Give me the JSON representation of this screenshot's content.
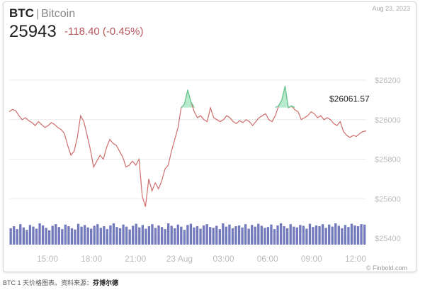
{
  "header": {
    "symbol": "BTC",
    "separator": "|",
    "name": "Bitcoin",
    "date": "Aug 23, 2023",
    "price": "25943",
    "change": "-118.40 (-0.45%)"
  },
  "footer": {
    "caption": "BTC 1 天价格图表。资料来源：",
    "source": "芬博尔德"
  },
  "colors": {
    "line": "#d06c6c",
    "up_fill": "#a6e6c2",
    "up_line": "#5ccf95",
    "volume": "#5a63b0",
    "grid": "#ebebeb",
    "axis_text": "#bbbbbb"
  },
  "chart_data": {
    "type": "line",
    "x_ticks": [
      "15:00",
      "18:00",
      "21:00",
      "23 Aug",
      "03:00",
      "06:00",
      "09:00",
      "12:00"
    ],
    "y_ticks": [
      "$26200",
      "$26000",
      "$25800",
      "$25600",
      "$25400"
    ],
    "ylim": [
      25400,
      26200
    ],
    "price_label": "$26061.57",
    "reference_price": 26061.57,
    "watermark": "© Finbold.com",
    "series": [
      {
        "values": [
          26040,
          26052,
          26045,
          26020,
          26000,
          26010,
          25995,
          25985,
          25970,
          25990,
          25975,
          25960,
          25970,
          25985,
          25975,
          25960,
          25950,
          25930,
          25870,
          25820,
          25840,
          25910,
          26020,
          25990,
          25920,
          25850,
          25760,
          25790,
          25820,
          25800,
          25860,
          25900,
          25880,
          25870,
          25840,
          25810,
          25760,
          25770,
          25790,
          25770,
          25800,
          25610,
          25560,
          25700,
          25640,
          25680,
          25650,
          25690,
          25750,
          25770,
          25840,
          25900,
          25960,
          26060,
          26080,
          26150,
          26090,
          26040,
          26010,
          26020,
          26000,
          25990,
          26060,
          26010,
          26000,
          25990,
          26000,
          26020,
          26010,
          25990,
          25980,
          25995,
          25985,
          26000,
          25990,
          25970,
          25990,
          26010,
          26020,
          26030,
          26000,
          25990,
          26020,
          26070,
          26100,
          26170,
          26060,
          26070,
          26050,
          26040,
          26000,
          26010,
          26020,
          26040,
          26030,
          26010,
          26020,
          26000,
          26010,
          26000,
          25980,
          25970,
          25990,
          25940,
          25920,
          25910,
          25920,
          25915,
          25930,
          25940,
          25943
        ]
      }
    ],
    "volume": [
      40,
      45,
      38,
      50,
      42,
      36,
      48,
      44,
      39,
      52,
      47,
      41,
      35,
      46,
      50,
      43,
      38,
      49,
      45,
      40,
      37,
      51,
      44,
      48,
      42,
      39,
      46,
      50,
      41,
      45,
      38,
      47,
      52,
      43,
      40,
      49,
      44,
      37,
      46,
      51,
      42,
      48,
      39,
      45,
      50,
      41,
      47,
      43,
      38,
      52,
      46,
      40,
      49,
      44,
      36,
      48,
      51,
      42,
      45,
      39,
      47,
      50,
      43,
      41,
      46,
      38,
      52,
      44,
      49,
      40,
      45,
      47,
      42,
      50,
      39,
      48,
      44,
      51,
      46,
      41,
      43,
      49,
      38,
      47,
      52,
      45,
      40,
      50,
      44,
      42,
      48,
      46,
      39,
      51,
      43,
      47,
      45,
      50,
      41,
      49,
      44,
      52,
      46,
      40,
      48,
      43,
      51,
      47,
      45,
      50,
      49
    ]
  }
}
